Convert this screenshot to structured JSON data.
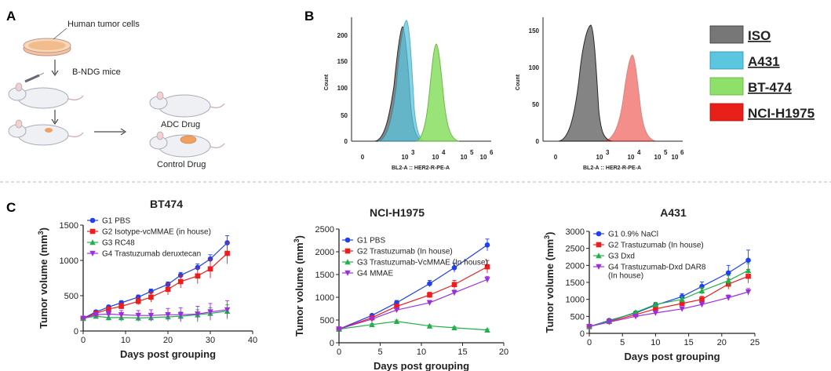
{
  "panels": {
    "A": "A",
    "B": "B",
    "C": "C"
  },
  "schematic": {
    "cells_label": "Human tumor cells",
    "mice_label": "B-NDG mice",
    "adc_label": "ADC Drug",
    "control_label": "Control Drug"
  },
  "flow_legend": [
    {
      "label": "ISO",
      "color": "#777777"
    },
    {
      "label": "A431",
      "color": "#5bc6e0"
    },
    {
      "label": "BT-474",
      "color": "#8ee06a"
    },
    {
      "label": "NCI-H1975",
      "color": "#e8201a"
    }
  ],
  "flow_plots": [
    {
      "ylabel": "Count",
      "xlabel": "BL2-A :: HER2-R-PE-A",
      "yticks": [
        "0",
        "50",
        "100",
        "150",
        "200"
      ],
      "xticks": [
        "0",
        "10",
        "10",
        "10",
        "10"
      ],
      "xexp": [
        "",
        "3",
        "4",
        "5",
        "6"
      ]
    },
    {
      "ylabel": "Count",
      "xlabel": "BL2-A :: HER2-R-PE-A",
      "yticks": [
        "0",
        "50",
        "100",
        "150"
      ],
      "xticks": [
        "0",
        "10",
        "10",
        "10",
        "10"
      ],
      "xexp": [
        "",
        "3",
        "4",
        "5",
        "6"
      ]
    }
  ],
  "chart_data": [
    {
      "type": "line",
      "title": "BT474",
      "xlabel": "Days post grouping",
      "ylabel": "Tumor volume (mm",
      "ylabel_sup": "3",
      "ylabel_end": ")",
      "xlim": [
        0,
        40
      ],
      "ylim": [
        0,
        1500
      ],
      "xticks": [
        0,
        10,
        20,
        30,
        40
      ],
      "yticks": [
        0,
        500,
        1000,
        1500
      ],
      "series": [
        {
          "name": "G1 PBS",
          "color": "#1f3ff0",
          "marker": "circle",
          "x": [
            0,
            3,
            6,
            9,
            13,
            16,
            20,
            23,
            27,
            30,
            34
          ],
          "y": [
            180,
            270,
            340,
            400,
            480,
            560,
            660,
            790,
            900,
            1020,
            1250
          ],
          "err": [
            20,
            25,
            25,
            30,
            30,
            35,
            35,
            40,
            50,
            60,
            100
          ]
        },
        {
          "name": "G2 Isotype-vcMMAE (in house)",
          "color": "#ee1c1c",
          "marker": "square",
          "x": [
            0,
            3,
            6,
            9,
            13,
            16,
            20,
            23,
            27,
            30,
            34
          ],
          "y": [
            180,
            250,
            310,
            350,
            420,
            480,
            590,
            700,
            780,
            880,
            1100
          ],
          "err": [
            20,
            25,
            30,
            40,
            50,
            70,
            80,
            90,
            110,
            130,
            150
          ]
        },
        {
          "name": "G3 RC48",
          "color": "#22b04a",
          "marker": "triangle-up",
          "x": [
            0,
            3,
            6,
            9,
            13,
            16,
            20,
            23,
            27,
            30,
            34
          ],
          "y": [
            180,
            210,
            190,
            190,
            185,
            190,
            200,
            210,
            230,
            250,
            280
          ],
          "err": [
            20,
            30,
            40,
            50,
            50,
            50,
            50,
            60,
            70,
            80,
            90
          ]
        },
        {
          "name": "G4 Trastuzumab deruxtecan",
          "color": "#9b2fe0",
          "marker": "triangle-down",
          "x": [
            0,
            3,
            6,
            9,
            13,
            16,
            20,
            23,
            27,
            30,
            34
          ],
          "y": [
            180,
            230,
            240,
            230,
            220,
            220,
            230,
            230,
            240,
            270,
            300
          ],
          "err": [
            20,
            30,
            50,
            60,
            70,
            80,
            90,
            100,
            110,
            120,
            130
          ]
        }
      ]
    },
    {
      "type": "line",
      "title": "NCI-H1975",
      "xlabel": "Days post grouping",
      "ylabel": "Tumor volume (mm",
      "ylabel_sup": "3",
      "ylabel_end": ")",
      "xlim": [
        0,
        20
      ],
      "ylim": [
        0,
        2500
      ],
      "xticks": [
        0,
        5,
        10,
        15,
        20
      ],
      "yticks": [
        0,
        500,
        1000,
        1500,
        2000,
        2500
      ],
      "series": [
        {
          "name": "G1 PBS",
          "color": "#1f3ff0",
          "marker": "circle",
          "x": [
            0,
            4,
            7,
            11,
            14,
            18
          ],
          "y": [
            300,
            600,
            880,
            1300,
            1650,
            2150
          ],
          "err": [
            20,
            30,
            50,
            70,
            100,
            130
          ]
        },
        {
          "name": "G2 Trastuzumab (In house)",
          "color": "#ee1c1c",
          "marker": "square",
          "x": [
            0,
            4,
            7,
            11,
            14,
            18
          ],
          "y": [
            300,
            550,
            800,
            1050,
            1280,
            1670
          ],
          "err": [
            20,
            30,
            40,
            60,
            90,
            140
          ]
        },
        {
          "name": "G3 Trastuzumab-VcMMAE (In house)",
          "color": "#22b04a",
          "marker": "triangle-up",
          "x": [
            0,
            4,
            7,
            11,
            14,
            18
          ],
          "y": [
            300,
            400,
            470,
            370,
            330,
            280
          ],
          "err": [
            20,
            20,
            30,
            20,
            20,
            20
          ]
        },
        {
          "name": "G4 MMAE",
          "color": "#9b2fe0",
          "marker": "triangle-down",
          "x": [
            0,
            4,
            7,
            11,
            14,
            18
          ],
          "y": [
            300,
            520,
            720,
            880,
            1100,
            1390
          ],
          "err": [
            20,
            30,
            40,
            50,
            60,
            70
          ]
        }
      ]
    },
    {
      "type": "line",
      "title": "A431",
      "xlabel": "Days post grouping",
      "ylabel": "Tumor volume (mm",
      "ylabel_sup": "3",
      "ylabel_end": ")",
      "xlim": [
        0,
        25
      ],
      "ylim": [
        0,
        3000
      ],
      "xticks": [
        0,
        5,
        10,
        15,
        20,
        25
      ],
      "yticks": [
        0,
        500,
        1000,
        1500,
        2000,
        2500,
        3000
      ],
      "series": [
        {
          "name": "G1 0.9% NaCl",
          "color": "#1f3ff0",
          "marker": "circle",
          "x": [
            0,
            3,
            7,
            10,
            14,
            17,
            21,
            24
          ],
          "y": [
            200,
            380,
            600,
            830,
            1080,
            1380,
            1780,
            2150
          ],
          "err": [
            20,
            30,
            40,
            60,
            90,
            130,
            220,
            300
          ]
        },
        {
          "name": "G2 Trastuzumab (In house)",
          "color": "#ee1c1c",
          "marker": "square",
          "x": [
            0,
            3,
            7,
            10,
            14,
            17,
            21,
            24
          ],
          "y": [
            200,
            350,
            550,
            720,
            880,
            1000,
            1450,
            1680
          ],
          "err": [
            20,
            30,
            40,
            50,
            70,
            90,
            150,
            200
          ]
        },
        {
          "name": "G3 Dxd",
          "color": "#22b04a",
          "marker": "triangle-up",
          "x": [
            0,
            3,
            7,
            10,
            14,
            17,
            21,
            24
          ],
          "y": [
            200,
            360,
            620,
            850,
            1000,
            1250,
            1550,
            1850
          ],
          "err": [
            20,
            30,
            40,
            60,
            80,
            100,
            150,
            200
          ]
        },
        {
          "name": "G4 Trastuzumab-Dxd DAR8",
          "name2": "(In house)",
          "color": "#9b2fe0",
          "marker": "triangle-down",
          "x": [
            0,
            3,
            7,
            10,
            14,
            17,
            21,
            24
          ],
          "y": [
            200,
            330,
            500,
            600,
            720,
            850,
            1050,
            1220
          ],
          "err": [
            20,
            30,
            40,
            40,
            50,
            60,
            80,
            100
          ]
        }
      ]
    }
  ]
}
